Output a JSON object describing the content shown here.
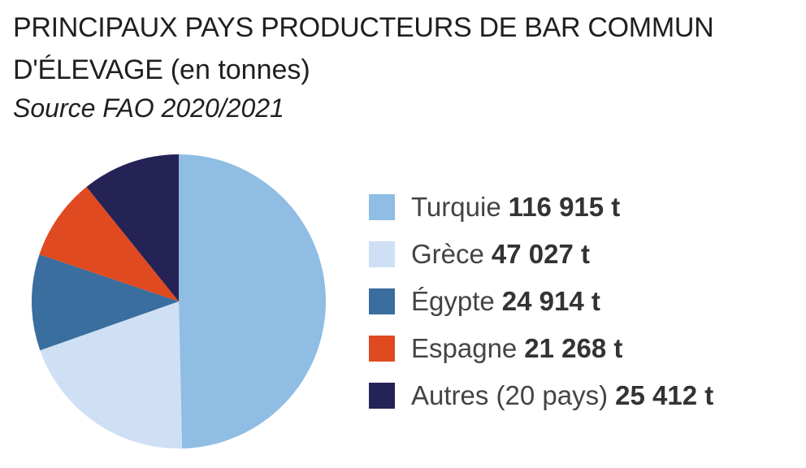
{
  "title": {
    "main": "PRINCIPAUX PAYS PRODUCTEURS DE BAR COMMUN D'ÉLEVAGE",
    "unit": "(en tonnes)"
  },
  "subtitle": "Source FAO 2020/2021",
  "chart_data": {
    "type": "pie",
    "title": "PRINCIPAUX PAYS PRODUCTEURS DE BAR COMMUN D'ÉLEVAGE (en tonnes)",
    "subtitle": "Source FAO 2020/2021",
    "unit": "t",
    "legend_position": "right",
    "start_angle": "top, clockwise",
    "slices": [
      {
        "label": "Turquie",
        "value": 116915,
        "display": "116 915 t",
        "color": "#8fbde3"
      },
      {
        "label": "Grèce",
        "value": 47027,
        "display": "47 027 t",
        "color": "#cfe0f4"
      },
      {
        "label": "Égypte",
        "value": 24914,
        "display": "24 914 t",
        "color": "#396e9e"
      },
      {
        "label": "Espagne",
        "value": 21268,
        "display": "21 268 t",
        "color": "#e04a20"
      },
      {
        "label": "Autres (20 pays)",
        "value": 25412,
        "display": "25 412 t",
        "color": "#252256"
      }
    ]
  }
}
